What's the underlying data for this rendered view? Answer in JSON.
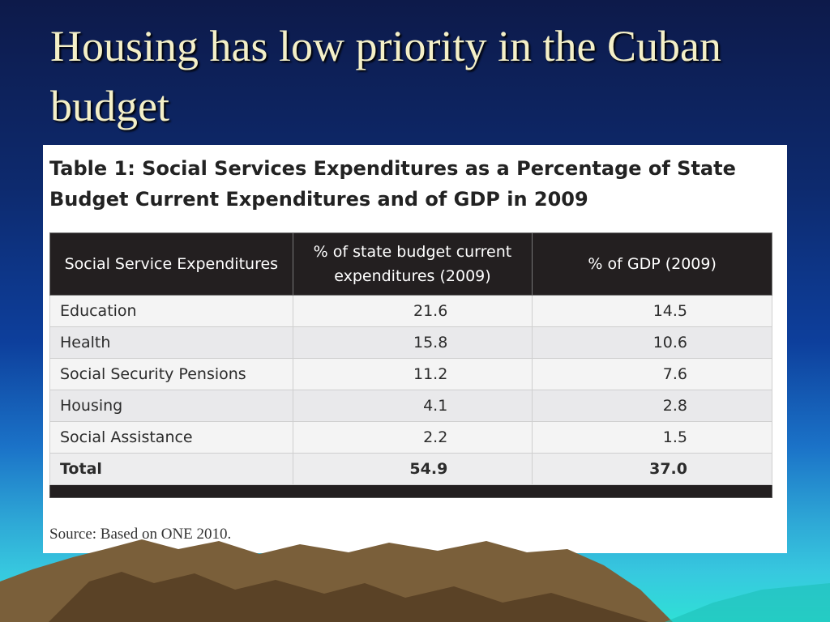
{
  "slide": {
    "title": "Housing has low priority in the Cuban budget"
  },
  "table": {
    "caption": "Table 1: Social Services Expenditures as a Percentage of State Budget Current Expenditures and of GDP in 2009",
    "headers": [
      "Social Service Expenditures",
      "% of state budget current expenditures (2009)",
      "%  of GDP (2009)"
    ],
    "rows": [
      {
        "label": "Education",
        "budget": "21.6",
        "gdp": "14.5"
      },
      {
        "label": "Health",
        "budget": "15.8",
        "gdp": "10.6"
      },
      {
        "label": "Social Security Pensions",
        "budget": "11.2",
        "gdp": "7.6"
      },
      {
        "label": "Housing",
        "budget": "4.1",
        "gdp": "2.8"
      },
      {
        "label": "Social Assistance",
        "budget": "2.2",
        "gdp": "1.5"
      }
    ],
    "total": {
      "label": "Total",
      "budget": "54.9",
      "gdp": "37.0"
    },
    "source": "Source: Based on ONE 2010."
  }
}
